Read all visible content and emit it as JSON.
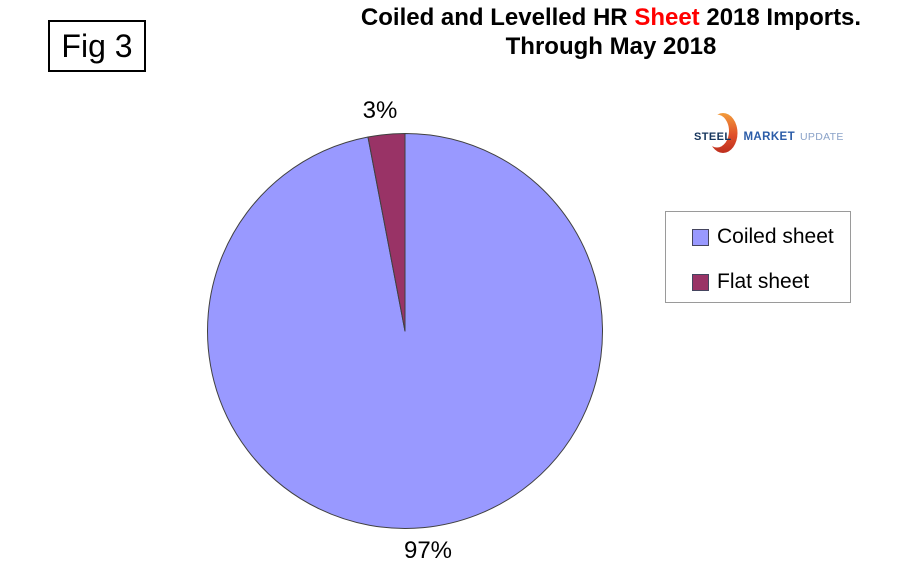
{
  "figure_label": "Fig 3",
  "header": {
    "title_parts": [
      {
        "text": "Coiled and Levelled HR ",
        "color": "#000000"
      },
      {
        "text": "Sheet",
        "color": "#FF0000"
      },
      {
        "text": " 2018 Imports.",
        "color": "#000000"
      }
    ],
    "title_line2": "Through May 2018"
  },
  "logo": {
    "steel": "STEEL",
    "market": "MARKET",
    "update": "UPDATE",
    "steel_color": "#16355c",
    "market_color": "#2b5ca8",
    "update_color": "#8aa2c8",
    "crescent_top_color": "#F29C3B",
    "crescent_mid_color": "#E0502A",
    "crescent_bottom_color": "#BE2E1E"
  },
  "chart_data": {
    "type": "pie",
    "title": "Coiled and Levelled HR Sheet 2018 Imports. Through May 2018",
    "categories": [
      "Coiled sheet",
      "Flat sheet"
    ],
    "values": [
      97,
      3
    ],
    "slices": [
      {
        "label": "Coiled sheet",
        "value": 97,
        "display": "97%",
        "color": "#9999FF"
      },
      {
        "label": "Flat sheet",
        "value": 3,
        "display": "3%",
        "color": "#993366"
      }
    ],
    "start_angle_deg": 0,
    "direction": "clockwise",
    "slice_border_color": "#404040",
    "legend_position": "right",
    "legend_entries": [
      "Coiled sheet",
      "Flat sheet"
    ]
  }
}
